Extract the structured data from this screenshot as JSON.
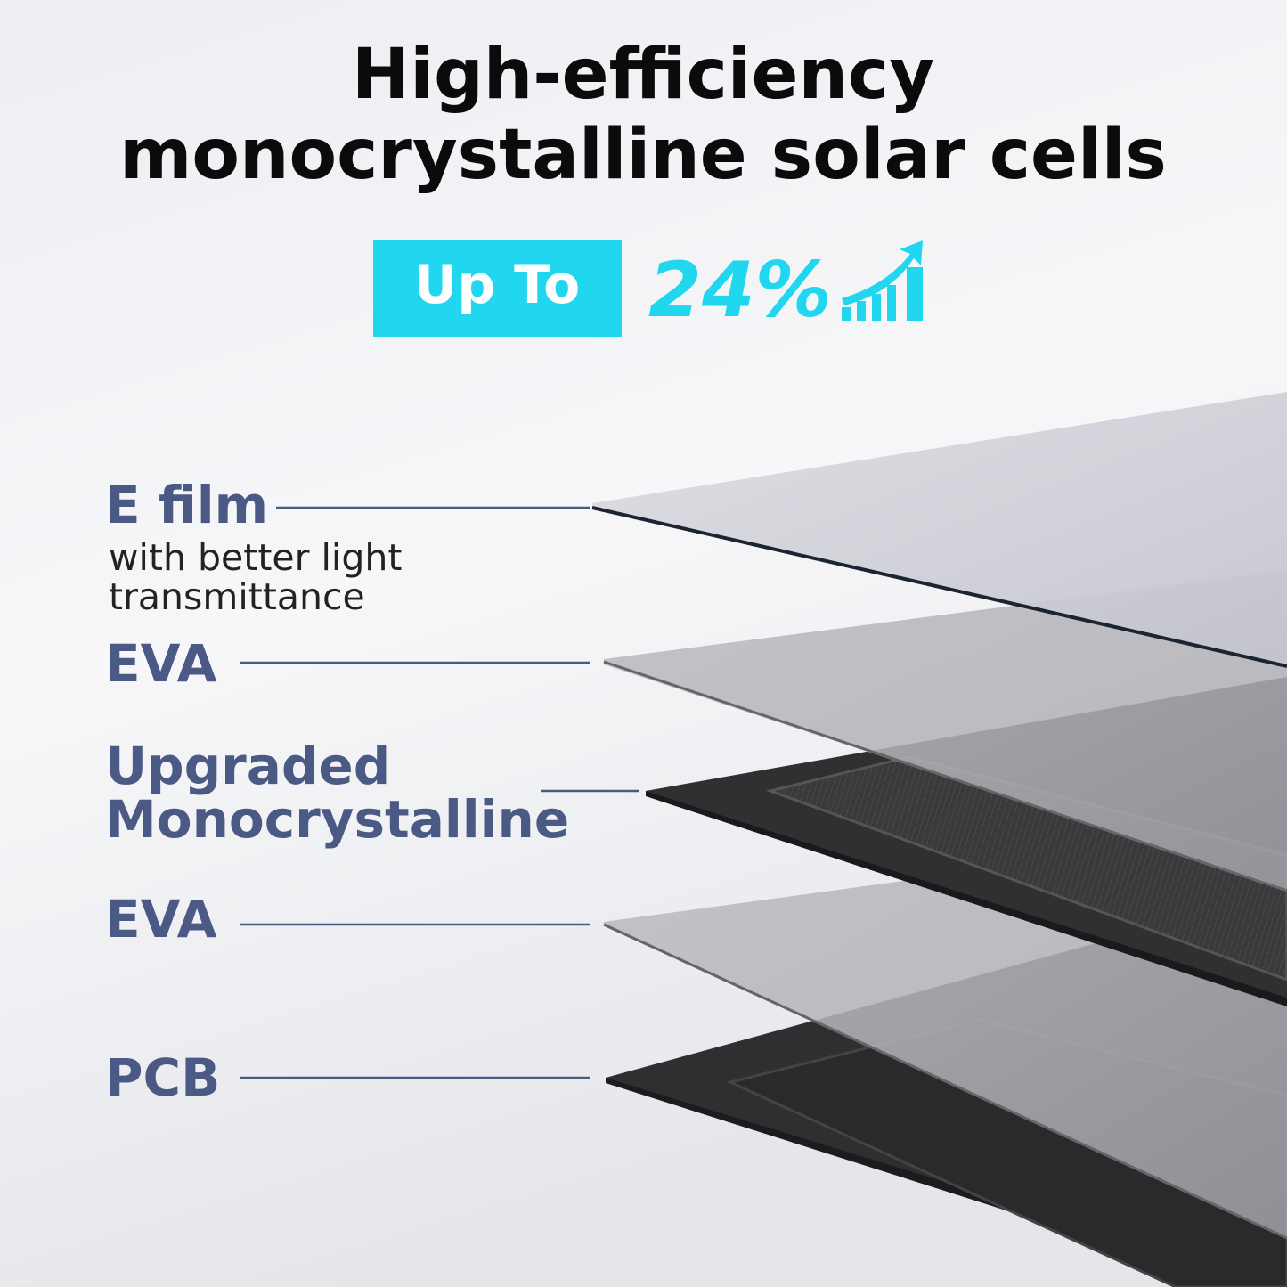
{
  "header": {
    "title": [
      "High-efficiency",
      "monocrystalline solar cells"
    ]
  },
  "badge": {
    "label": "Up To",
    "value": "24%"
  },
  "layers": [
    {
      "lines": [
        "E film"
      ],
      "description": [
        "with better light",
        "transmittance"
      ]
    },
    {
      "lines": [
        "EVA"
      ]
    },
    {
      "lines": [
        "Upgraded",
        "Monocrystalline"
      ]
    },
    {
      "lines": [
        "EVA"
      ]
    },
    {
      "lines": [
        "PCB"
      ]
    }
  ]
}
